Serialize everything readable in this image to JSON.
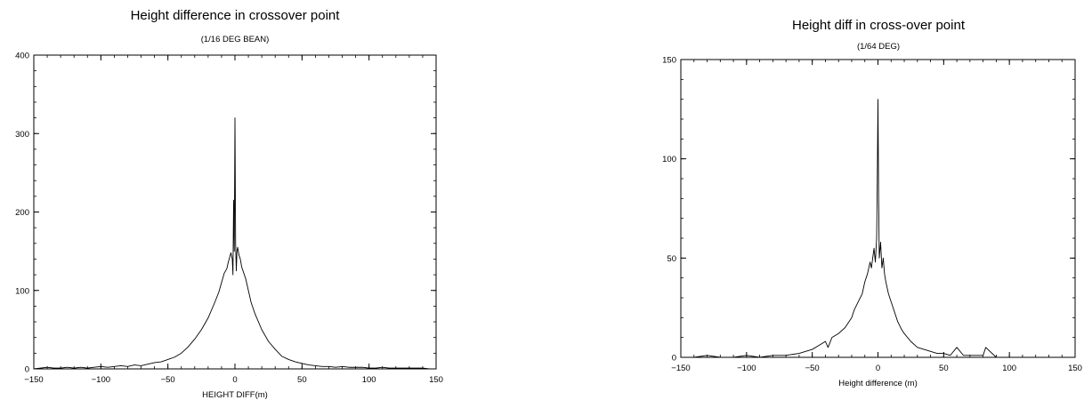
{
  "chart_data": [
    {
      "type": "line",
      "title": "Height difference in crossover point",
      "subtitle": "(1/16 DEG BEAN)",
      "xlabel": "HEIGHT DIFF(m)",
      "ylabel": "",
      "xlim": [
        -150,
        150
      ],
      "ylim": [
        0,
        400
      ],
      "xticks": [
        -150,
        -100,
        -50,
        0,
        50,
        100,
        150
      ],
      "yticks": [
        0,
        100,
        200,
        300,
        400
      ],
      "grid": false,
      "series": [
        {
          "x": [
            -150,
            -145,
            -140,
            -135,
            -130,
            -125,
            -120,
            -115,
            -110,
            -105,
            -100,
            -95,
            -90,
            -85,
            -80,
            -75,
            -70,
            -65,
            -60,
            -55,
            -50,
            -45,
            -40,
            -35,
            -30,
            -25,
            -20,
            -15,
            -12,
            -10,
            -8,
            -6,
            -5,
            -4,
            -3,
            -2,
            -1.5,
            -1,
            -0.5,
            0,
            0.5,
            1,
            1.5,
            2,
            3,
            4,
            5,
            6,
            8,
            10,
            12,
            15,
            20,
            25,
            30,
            35,
            40,
            45,
            50,
            55,
            60,
            65,
            70,
            75,
            80,
            85,
            90,
            95,
            100,
            105,
            110,
            115,
            120,
            125,
            130,
            135,
            140,
            145,
            150
          ],
          "y": [
            0,
            1,
            2,
            1,
            1,
            2,
            1,
            2,
            1,
            2,
            3,
            2,
            3,
            4,
            3,
            5,
            4,
            6,
            8,
            9,
            12,
            15,
            20,
            28,
            38,
            50,
            65,
            85,
            98,
            110,
            122,
            128,
            136,
            142,
            148,
            140,
            120,
            215,
            150,
            320,
            160,
            125,
            150,
            155,
            145,
            140,
            130,
            125,
            115,
            100,
            85,
            70,
            50,
            35,
            25,
            16,
            12,
            9,
            7,
            5,
            4,
            3,
            3,
            2,
            3,
            2,
            2,
            2,
            1,
            1,
            2,
            1,
            1,
            1,
            1,
            1,
            1,
            0,
            0
          ]
        }
      ]
    },
    {
      "type": "line",
      "title": "Height diff in cross-over point",
      "subtitle": "(1/64 DEG)",
      "xlabel": "Height difference (m)",
      "ylabel": "",
      "xlim": [
        -150,
        150
      ],
      "ylim": [
        0,
        150
      ],
      "xticks": [
        -150,
        -100,
        -50,
        0,
        50,
        100,
        150
      ],
      "yticks": [
        0,
        50,
        100,
        150
      ],
      "grid": false,
      "series": [
        {
          "x": [
            -150,
            -140,
            -130,
            -120,
            -110,
            -100,
            -90,
            -80,
            -70,
            -60,
            -55,
            -50,
            -45,
            -40,
            -38,
            -35,
            -30,
            -25,
            -20,
            -18,
            -15,
            -12,
            -10,
            -8,
            -6,
            -5,
            -4,
            -3,
            -2,
            -1,
            -0.5,
            0,
            0.5,
            1,
            2,
            3,
            4,
            5,
            6,
            8,
            10,
            12,
            15,
            18,
            20,
            25,
            30,
            35,
            40,
            45,
            50,
            55,
            60,
            65,
            70,
            80,
            82,
            90,
            100,
            110,
            120,
            130,
            140,
            150
          ],
          "y": [
            0,
            0,
            1,
            0,
            0,
            1,
            0,
            1,
            1,
            2,
            3,
            4,
            6,
            8,
            5,
            10,
            12,
            15,
            20,
            24,
            28,
            32,
            38,
            42,
            48,
            45,
            50,
            55,
            48,
            60,
            90,
            130,
            80,
            50,
            58,
            45,
            50,
            42,
            38,
            32,
            28,
            24,
            18,
            14,
            12,
            8,
            5,
            4,
            3,
            2,
            2,
            1,
            5,
            1,
            1,
            1,
            5,
            0,
            0,
            0,
            0,
            0,
            0,
            0
          ]
        }
      ]
    }
  ]
}
